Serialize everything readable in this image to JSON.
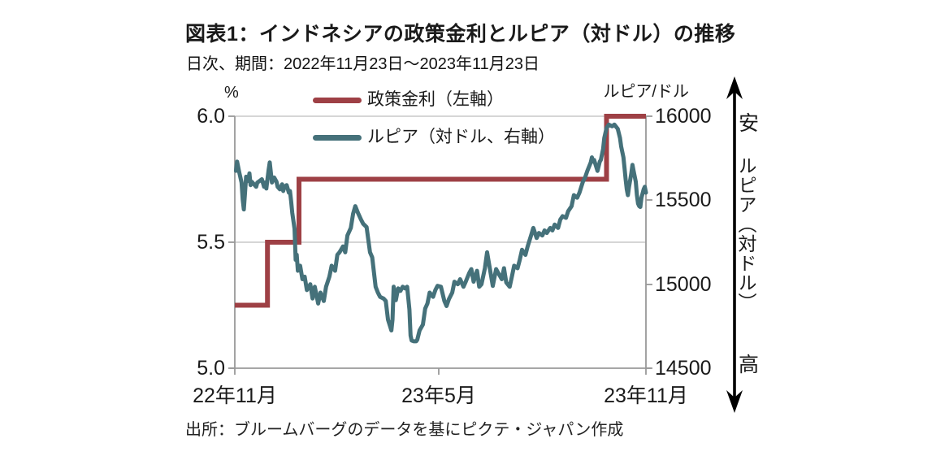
{
  "header": {
    "title": "図表1：インドネシアの政策金利とルピア（対ドル）の推移",
    "subtitle": "日次、期間：2022年11月23日～2023年11月23日"
  },
  "footer": {
    "source": "出所：ブルームバーグのデータを基にピクテ・ジャパン作成"
  },
  "axis_units": {
    "left": "%",
    "right": "ルピア/ドル"
  },
  "right_scale_annotation": {
    "top": "安",
    "middle": "ルピア（対ドル）",
    "bottom": "高"
  },
  "colors": {
    "policy_rate": "#9E4045",
    "rupiah": "#45717A",
    "grid": "#C9C9C9",
    "axis": "#999999",
    "text": "#1A1A1A"
  },
  "chart_data": {
    "type": "line",
    "title": "図表1：インドネシアの政策金利とルピア（対ドル）の推移",
    "frequency_note": "日次、期間：2022年11月23日～2023年11月23日",
    "x_axis": {
      "domain_days": [
        0,
        365
      ],
      "start": "2022年11月23日",
      "end": "2023年11月23日",
      "tick_labels": [
        "22年11月",
        "23年5月",
        "23年11月"
      ],
      "tick_days": [
        0,
        181,
        365
      ]
    },
    "left_axis": {
      "unit": "%",
      "min": 5.0,
      "max": 6.0,
      "tick_labels": [
        "6.0",
        "5.5",
        "5.0"
      ],
      "tick_values": [
        6.0,
        5.5,
        5.0
      ]
    },
    "right_axis": {
      "unit": "ルピア/ドル",
      "min": 14500,
      "max": 16000,
      "tick_labels": [
        "16000",
        "15500",
        "15000",
        "14500"
      ],
      "tick_values": [
        16000,
        15500,
        15000,
        14500
      ]
    },
    "grid": {
      "horizontal_left_values": [
        6.0,
        5.5
      ]
    },
    "legend_position": "top-inside",
    "series": [
      {
        "name": "政策金利（左軸）",
        "axis": "left",
        "color": "#9E4045",
        "width": 6,
        "points": [
          [
            0,
            5.25
          ],
          [
            29,
            5.25
          ],
          [
            29,
            5.5
          ],
          [
            57,
            5.5
          ],
          [
            57,
            5.75
          ],
          [
            330,
            5.75
          ],
          [
            330,
            6.0
          ],
          [
            365,
            6.0
          ]
        ]
      },
      {
        "name": "ルピア（対ドル、右軸）",
        "axis": "right",
        "color": "#45717A",
        "width": 5,
        "points": [
          [
            1,
            15675
          ],
          [
            2,
            15730
          ],
          [
            4,
            15665
          ],
          [
            6,
            15605
          ],
          [
            7,
            15505
          ],
          [
            8,
            15445
          ],
          [
            9,
            15540
          ],
          [
            10,
            15640
          ],
          [
            12,
            15615
          ],
          [
            13,
            15660
          ],
          [
            14,
            15590
          ],
          [
            15,
            15610
          ],
          [
            17,
            15595
          ],
          [
            19,
            15580
          ],
          [
            20,
            15605
          ],
          [
            22,
            15615
          ],
          [
            24,
            15625
          ],
          [
            26,
            15580
          ],
          [
            27,
            15605
          ],
          [
            28,
            15570
          ],
          [
            30,
            15680
          ],
          [
            31,
            15725
          ],
          [
            33,
            15605
          ],
          [
            35,
            15635
          ],
          [
            37,
            15610
          ],
          [
            38,
            15580
          ],
          [
            40,
            15565
          ],
          [
            42,
            15595
          ],
          [
            43,
            15555
          ],
          [
            44,
            15580
          ],
          [
            46,
            15590
          ],
          [
            48,
            15545
          ],
          [
            49,
            15555
          ],
          [
            50,
            15495
          ],
          [
            51,
            15425
          ],
          [
            53,
            15330
          ],
          [
            54,
            15145
          ],
          [
            55,
            15175
          ],
          [
            56,
            15080
          ],
          [
            58,
            15110
          ],
          [
            60,
            15030
          ],
          [
            62,
            15045
          ],
          [
            64,
            14965
          ],
          [
            67,
            15000
          ],
          [
            69,
            14915
          ],
          [
            71,
            14985
          ],
          [
            74,
            14885
          ],
          [
            76,
            14950
          ],
          [
            79,
            14900
          ],
          [
            81,
            14985
          ],
          [
            84,
            15045
          ],
          [
            86,
            15110
          ],
          [
            89,
            15080
          ],
          [
            91,
            15175
          ],
          [
            93,
            15190
          ],
          [
            96,
            15225
          ],
          [
            98,
            15190
          ],
          [
            100,
            15290
          ],
          [
            103,
            15335
          ],
          [
            105,
            15420
          ],
          [
            107,
            15465
          ],
          [
            109,
            15430
          ],
          [
            112,
            15385
          ],
          [
            114,
            15360
          ],
          [
            117,
            15340
          ],
          [
            120,
            15190
          ],
          [
            122,
            15160
          ],
          [
            125,
            14985
          ],
          [
            127,
            14950
          ],
          [
            129,
            14925
          ],
          [
            132,
            14915
          ],
          [
            134,
            14900
          ],
          [
            136,
            14790
          ],
          [
            139,
            14725
          ],
          [
            140,
            14790
          ],
          [
            141,
            14985
          ],
          [
            143,
            14905
          ],
          [
            145,
            14975
          ],
          [
            147,
            14960
          ],
          [
            149,
            14985
          ],
          [
            151,
            14975
          ],
          [
            153,
            14985
          ],
          [
            155,
            14850
          ],
          [
            156,
            14695
          ],
          [
            157,
            14665
          ],
          [
            159,
            14660
          ],
          [
            161,
            14660
          ],
          [
            162,
            14670
          ],
          [
            164,
            14725
          ],
          [
            167,
            14760
          ],
          [
            169,
            14855
          ],
          [
            171,
            14885
          ],
          [
            173,
            14950
          ],
          [
            176,
            14925
          ],
          [
            178,
            14965
          ],
          [
            180,
            14990
          ],
          [
            183,
            14985
          ],
          [
            186,
            14900
          ],
          [
            188,
            14870
          ],
          [
            190,
            14910
          ],
          [
            193,
            14950
          ],
          [
            195,
            15015
          ],
          [
            198,
            15000
          ],
          [
            200,
            15030
          ],
          [
            203,
            14985
          ],
          [
            205,
            15015
          ],
          [
            208,
            15065
          ],
          [
            210,
            15090
          ],
          [
            212,
            15015
          ],
          [
            215,
            15080
          ],
          [
            217,
            14985
          ],
          [
            219,
            15000
          ],
          [
            222,
            15095
          ],
          [
            224,
            15190
          ],
          [
            226,
            15110
          ],
          [
            229,
            14990
          ],
          [
            232,
            15090
          ],
          [
            234,
            15065
          ],
          [
            237,
            15030
          ],
          [
            239,
            15095
          ],
          [
            241,
            15010
          ],
          [
            244,
            14985
          ],
          [
            246,
            15045
          ],
          [
            248,
            15110
          ],
          [
            251,
            15095
          ],
          [
            253,
            15145
          ],
          [
            255,
            15205
          ],
          [
            258,
            15175
          ],
          [
            260,
            15225
          ],
          [
            263,
            15290
          ],
          [
            265,
            15335
          ],
          [
            268,
            15275
          ],
          [
            270,
            15305
          ],
          [
            273,
            15290
          ],
          [
            275,
            15320
          ],
          [
            277,
            15305
          ],
          [
            280,
            15335
          ],
          [
            282,
            15320
          ],
          [
            284,
            15355
          ],
          [
            287,
            15335
          ],
          [
            289,
            15385
          ],
          [
            291,
            15405
          ],
          [
            294,
            15395
          ],
          [
            296,
            15435
          ],
          [
            299,
            15465
          ],
          [
            301,
            15530
          ],
          [
            304,
            15515
          ],
          [
            306,
            15545
          ],
          [
            309,
            15610
          ],
          [
            311,
            15635
          ],
          [
            313,
            15675
          ],
          [
            316,
            15725
          ],
          [
            317,
            15755
          ],
          [
            318,
            15730
          ],
          [
            319,
            15740
          ],
          [
            322,
            15675
          ],
          [
            324,
            15730
          ],
          [
            325,
            15740
          ],
          [
            327,
            15805
          ],
          [
            328,
            15870
          ],
          [
            330,
            15930
          ],
          [
            332,
            15950
          ],
          [
            335,
            15940
          ],
          [
            337,
            15950
          ],
          [
            340,
            15925
          ],
          [
            342,
            15870
          ],
          [
            343,
            15820
          ],
          [
            345,
            15755
          ],
          [
            346,
            15690
          ],
          [
            347,
            15625
          ],
          [
            348,
            15565
          ],
          [
            349,
            15530
          ],
          [
            350,
            15580
          ],
          [
            352,
            15660
          ],
          [
            353,
            15710
          ],
          [
            354,
            15675
          ],
          [
            356,
            15610
          ],
          [
            357,
            15530
          ],
          [
            358,
            15480
          ],
          [
            359,
            15465
          ],
          [
            360,
            15460
          ],
          [
            361,
            15515
          ],
          [
            363,
            15565
          ],
          [
            364,
            15580
          ],
          [
            365,
            15545
          ]
        ]
      }
    ]
  }
}
